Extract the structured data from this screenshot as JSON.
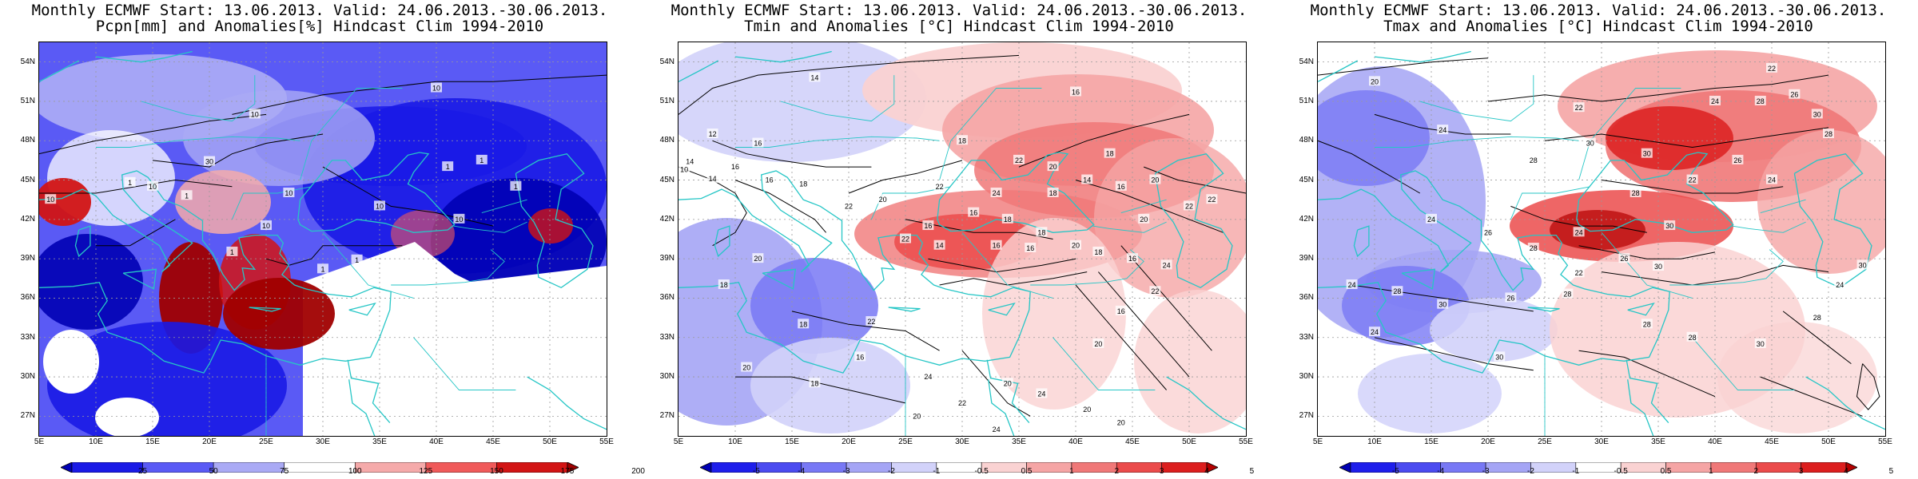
{
  "panels": [
    {
      "title_line1": "Monthly ECMWF Start: 13.06.2013. Valid: 24.06.2013.-30.06.2013.",
      "title_line2": "Pcpn[mm] and Anomalies[%] Hindcast Clim 1994-2010",
      "colorbar_ticks": [
        "25",
        "50",
        "75",
        "100",
        "125",
        "150",
        "175",
        "200"
      ],
      "colorbar_colors": [
        "#0000b4",
        "#1a1ae6",
        "#5a5af5",
        "#aaaaf5",
        "#ffffff",
        "#f5aaaa",
        "#f05a5a",
        "#d21414",
        "#a00000"
      ],
      "contour_labels": [
        "10",
        "10",
        "30",
        "10",
        "10",
        "10",
        "10",
        "10",
        "1",
        "1",
        "1",
        "1",
        "1",
        "10",
        "1",
        "1",
        "1"
      ]
    },
    {
      "title_line1": "Monthly ECMWF Start: 13.06.2013. Valid: 24.06.2013.-30.06.2013.",
      "title_line2": "Tmin and Anomalies [°C] Hindcast Clim 1994-2010",
      "colorbar_ticks": [
        "-5",
        "-4",
        "-3",
        "-2",
        "-1",
        "-0.5",
        "0.5",
        "1",
        "2",
        "3",
        "4",
        "5"
      ],
      "colorbar_colors": [
        "#0000b4",
        "#1e1eeb",
        "#4b4bf0",
        "#7878f5",
        "#a5a5f5",
        "#d2d2fa",
        "#ffffff",
        "#fad2d2",
        "#f5a5a5",
        "#f07878",
        "#eb4b4b",
        "#dc1e1e",
        "#b40000"
      ],
      "contour_labels": [
        "14",
        "16",
        "12",
        "16",
        "18",
        "14",
        "16",
        "10",
        "14",
        "16",
        "18",
        "22",
        "20",
        "18",
        "20",
        "14",
        "16",
        "18",
        "24",
        "22",
        "20",
        "22",
        "16",
        "18",
        "18",
        "16",
        "22",
        "14",
        "16",
        "16",
        "20",
        "18",
        "16",
        "24",
        "20",
        "22",
        "22",
        "22",
        "16",
        "20",
        "20",
        "18",
        "18",
        "22",
        "20",
        "18",
        "16",
        "24",
        "20",
        "24",
        "20",
        "22",
        "20",
        "20",
        "24"
      ]
    },
    {
      "title_line1": "Monthly ECMWF Start: 13.06.2013. Valid: 24.06.2013.-30.06.2013.",
      "title_line2": "Tmax and Anomalies [°C] Hindcast Clim 1994-2010",
      "colorbar_ticks": [
        "-5",
        "-4",
        "-3",
        "-2",
        "-1",
        "-0.5",
        "0.5",
        "1",
        "2",
        "3",
        "4",
        "5"
      ],
      "colorbar_colors": [
        "#0000b4",
        "#1e1eeb",
        "#4b4bf0",
        "#7878f5",
        "#a5a5f5",
        "#d2d2fa",
        "#ffffff",
        "#fad2d2",
        "#f5a5a5",
        "#f07878",
        "#eb4b4b",
        "#dc1e1e",
        "#b40000"
      ],
      "contour_labels": [
        "20",
        "24",
        "22",
        "26",
        "28",
        "30",
        "24",
        "22",
        "28",
        "30",
        "26",
        "30",
        "28",
        "22",
        "24",
        "28",
        "24",
        "26",
        "30",
        "24",
        "28",
        "26",
        "30",
        "22",
        "24",
        "28",
        "30",
        "26",
        "28",
        "24",
        "30",
        "28",
        "28",
        "30",
        "28",
        "24",
        "30"
      ]
    }
  ],
  "axes": {
    "lat_ticks": [
      "54N",
      "51N",
      "48N",
      "45N",
      "42N",
      "39N",
      "36N",
      "33N",
      "30N",
      "27N"
    ],
    "lon_ticks": [
      "5E",
      "10E",
      "15E",
      "20E",
      "25E",
      "30E",
      "35E",
      "40E",
      "45E",
      "50E",
      "55E"
    ]
  },
  "colors": {
    "coastline": "#26c6c6",
    "contour": "#000000",
    "gridline": "#9a9a9a"
  }
}
